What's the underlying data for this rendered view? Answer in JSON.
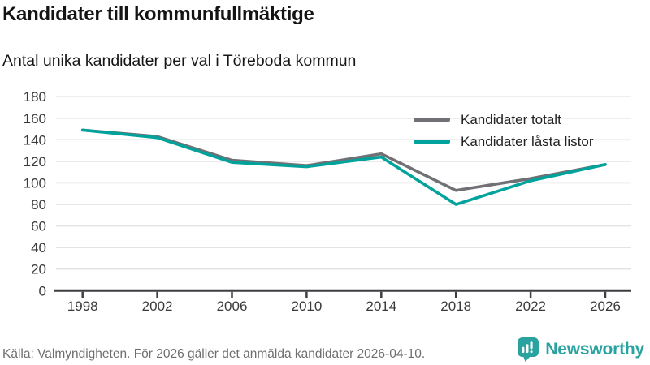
{
  "header": {
    "title": "Kandidater till kommunfullmäktige",
    "subtitle": "Antal unika kandidater per val i Töreboda kommun"
  },
  "chart_data": {
    "type": "line",
    "title": "Kandidater till kommunfullmäktige",
    "subtitle": "Antal unika kandidater per val i Töreboda kommun",
    "x": [
      1998,
      2002,
      2006,
      2010,
      2014,
      2018,
      2022,
      2026
    ],
    "series": [
      {
        "name": "Kandidater totalt",
        "color": "#717175",
        "values": [
          149,
          143,
          121,
          116,
          127,
          93,
          104,
          117
        ]
      },
      {
        "name": "Kandidater låsta listor",
        "color": "#00a39b",
        "values": [
          149,
          142,
          119,
          115,
          124,
          80,
          102,
          117
        ]
      }
    ],
    "xlabel": "",
    "ylabel": "",
    "ylim": [
      0,
      180
    ],
    "yticks": [
      0,
      20,
      40,
      60,
      80,
      100,
      120,
      140,
      160,
      180
    ],
    "grid": true,
    "legend_position": "top-right"
  },
  "footer": {
    "source": "Källa: Valmyndigheten. För 2026 gäller det anmälda kandidater 2026-04-10.",
    "brand": "Newsworthy"
  },
  "colors": {
    "brand_teal": "#2aa3a0",
    "line_total_gray": "#717175",
    "line_locked_teal": "#00a39b",
    "axis_dark": "#3e3e42",
    "grid_gray": "#e3e3e3",
    "footer_gray": "#6e6e6e"
  }
}
